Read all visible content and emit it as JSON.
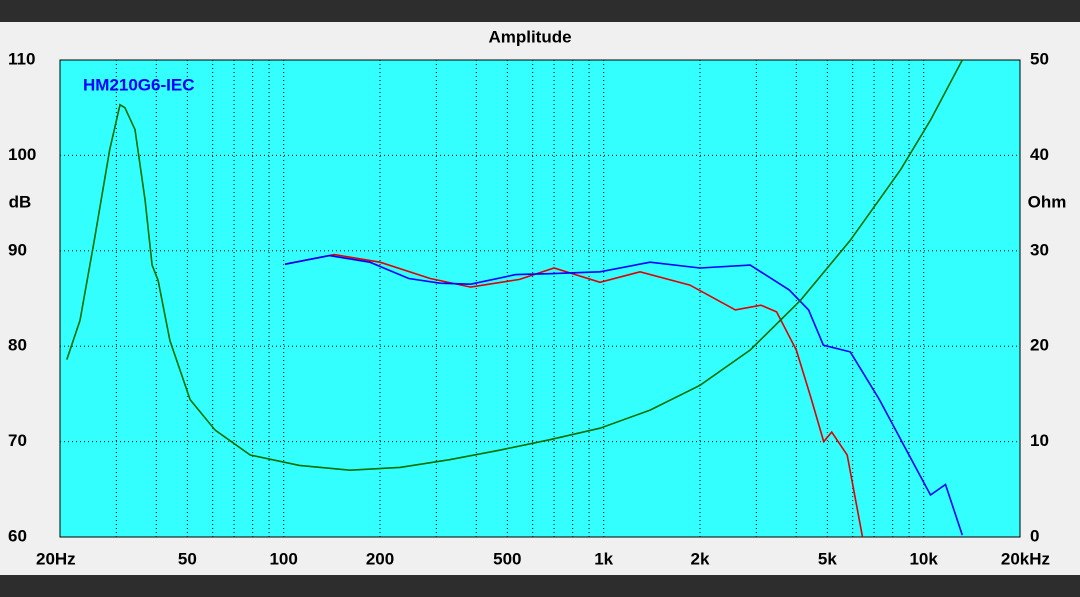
{
  "chart_data": {
    "type": "line",
    "title": "Amplitude",
    "ylabel": "dB",
    "y2label": "Ohm",
    "log_x": true,
    "grid": true,
    "legend_position": "upper left",
    "xlim": [
      20,
      20000
    ],
    "xticks": [
      {
        "value": 20,
        "label": "20Hz"
      },
      50,
      100,
      200,
      500,
      {
        "value": 1000,
        "label": "1k"
      },
      {
        "value": 2000,
        "label": "2k"
      },
      {
        "value": 5000,
        "label": "5k"
      },
      {
        "value": 10000,
        "label": "10k"
      },
      {
        "value": 20000,
        "label": "20kHz"
      }
    ],
    "xminorticks": [
      30,
      40,
      60,
      70,
      80,
      90,
      300,
      400,
      600,
      700,
      800,
      900,
      3000,
      4000,
      6000,
      7000,
      8000,
      9000
    ],
    "ylim": [
      60,
      110
    ],
    "yticks": [
      60,
      70,
      80,
      90,
      100,
      110
    ],
    "y2lim": [
      0,
      50
    ],
    "y2ticks": [
      0,
      10,
      20,
      30,
      40,
      50
    ],
    "series": [
      {
        "color": "#e00000",
        "x": [
          101,
          144,
          200,
          287,
          384,
          546,
          700,
          974,
          1300,
          1860,
          2580,
          3100,
          3470,
          4000,
          4460,
          4870,
          5160,
          5770,
          6440
        ],
        "values": [
          88.6,
          89.6,
          88.8,
          87.1,
          86.2,
          87.0,
          88.2,
          86.7,
          87.8,
          86.4,
          83.8,
          84.3,
          83.6,
          79.6,
          74.4,
          70.0,
          71.0,
          68.6,
          60
        ]
      },
      {
        "name": "HM210G6-IEC",
        "color": "#0000ff",
        "x": [
          101,
          139,
          186,
          246,
          308,
          384,
          531,
          679,
          974,
          1397,
          2000,
          2870,
          3800,
          4370,
          4860,
          5900,
          7270,
          9000,
          10500,
          11700,
          13200
        ],
        "values": [
          88.6,
          89.5,
          88.8,
          87.1,
          86.6,
          86.5,
          87.5,
          87.6,
          87.8,
          88.8,
          88.2,
          88.5,
          85.9,
          83.8,
          80.1,
          79.4,
          74.4,
          68.6,
          64.4,
          65.5,
          60.2
        ]
      },
      {
        "color": "#007000",
        "axis": "y2",
        "x": [
          21,
          23.1,
          25.6,
          28.6,
          30.8,
          31.9,
          34.3,
          36.9,
          38.8,
          40.5,
          44.1,
          51,
          61.1,
          78.6,
          112,
          161,
          231,
          330,
          473,
          679,
          974,
          1397,
          2000,
          2870,
          4120,
          5900,
          8470,
          10500,
          13200
        ],
        "values": [
          18.6,
          22.7,
          31.1,
          40.6,
          45.3,
          45,
          42.7,
          35.3,
          28.5,
          26.9,
          20.6,
          14.4,
          11.2,
          8.6,
          7.5,
          7.0,
          7.3,
          8.1,
          9.1,
          10.2,
          11.4,
          13.3,
          15.9,
          19.6,
          24.8,
          31.1,
          38.5,
          43.7,
          50
        ]
      }
    ]
  }
}
